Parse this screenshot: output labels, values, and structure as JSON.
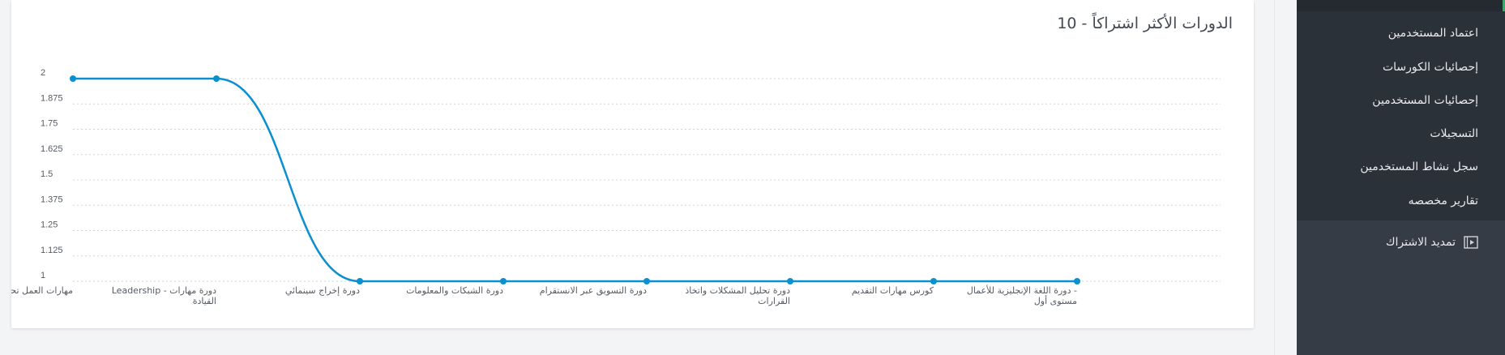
{
  "chart_card": {
    "title": "الدورات الأكثر اشتراكاً - 10"
  },
  "chart_data": {
    "type": "line",
    "title": "الدورات الأكثر اشتراكاً - 10",
    "categories": [
      "مهارات العمل تحت ضغط",
      "Leadership - دورة مهارات القيادة",
      "دورة إخراج سينمائي",
      "دورة الشبكات والمعلومات",
      "دورة التسويق عبر الانستقرام",
      "دورة تحليل المشكلات واتخاذ القرارات",
      "كورس مهارات التقديم",
      "دورة اللغة الإنجليزية للأعمال - مستوى أول"
    ],
    "series": [
      {
        "values": [
          2,
          2,
          1,
          1,
          1,
          1,
          1,
          1
        ]
      }
    ],
    "y_ticks": [
      "1",
      "1.125",
      "1.25",
      "1.375",
      "1.5",
      "1.625",
      "1.75",
      "1.875",
      "2"
    ],
    "ylim": [
      1,
      2
    ],
    "grid": true,
    "color": "#0a8fd1"
  },
  "sidebar": {
    "items": [
      {
        "label": "اعتماد المستخدمين"
      },
      {
        "label": "إحصائيات الكورسات"
      },
      {
        "label": "إحصائيات المستخدمين"
      },
      {
        "label": "التسجيلات"
      },
      {
        "label": "سجل نشاط المستخدمين"
      },
      {
        "label": "تقارير مخصصه"
      }
    ],
    "main_item": {
      "label": "تمديد الاشتراك",
      "icon": "video-icon"
    },
    "colors": {
      "bg": "#2b3139",
      "section": "#353c45",
      "accent": "#3ea76e"
    }
  }
}
